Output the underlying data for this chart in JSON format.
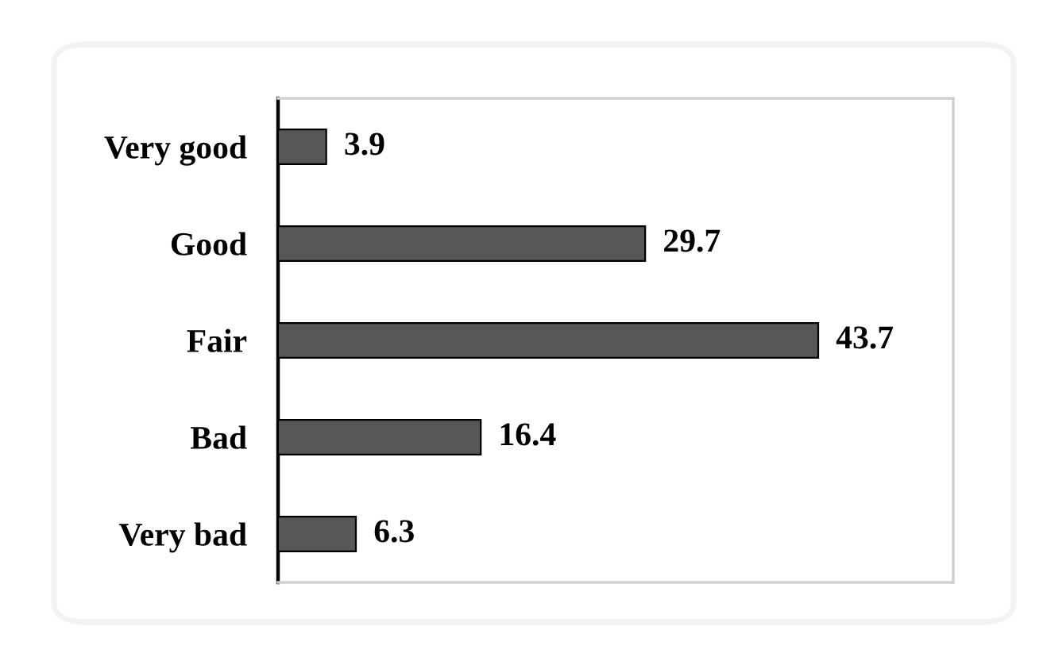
{
  "chart_data": {
    "type": "bar",
    "orientation": "horizontal",
    "tick_labels": "y",
    "data_labels": true,
    "categories": [
      "Very good",
      "Good",
      "Fair",
      "Bad",
      "Very bad"
    ],
    "values": [
      3.9,
      29.7,
      43.7,
      16.4,
      6.3
    ],
    "color": "#575757"
  }
}
